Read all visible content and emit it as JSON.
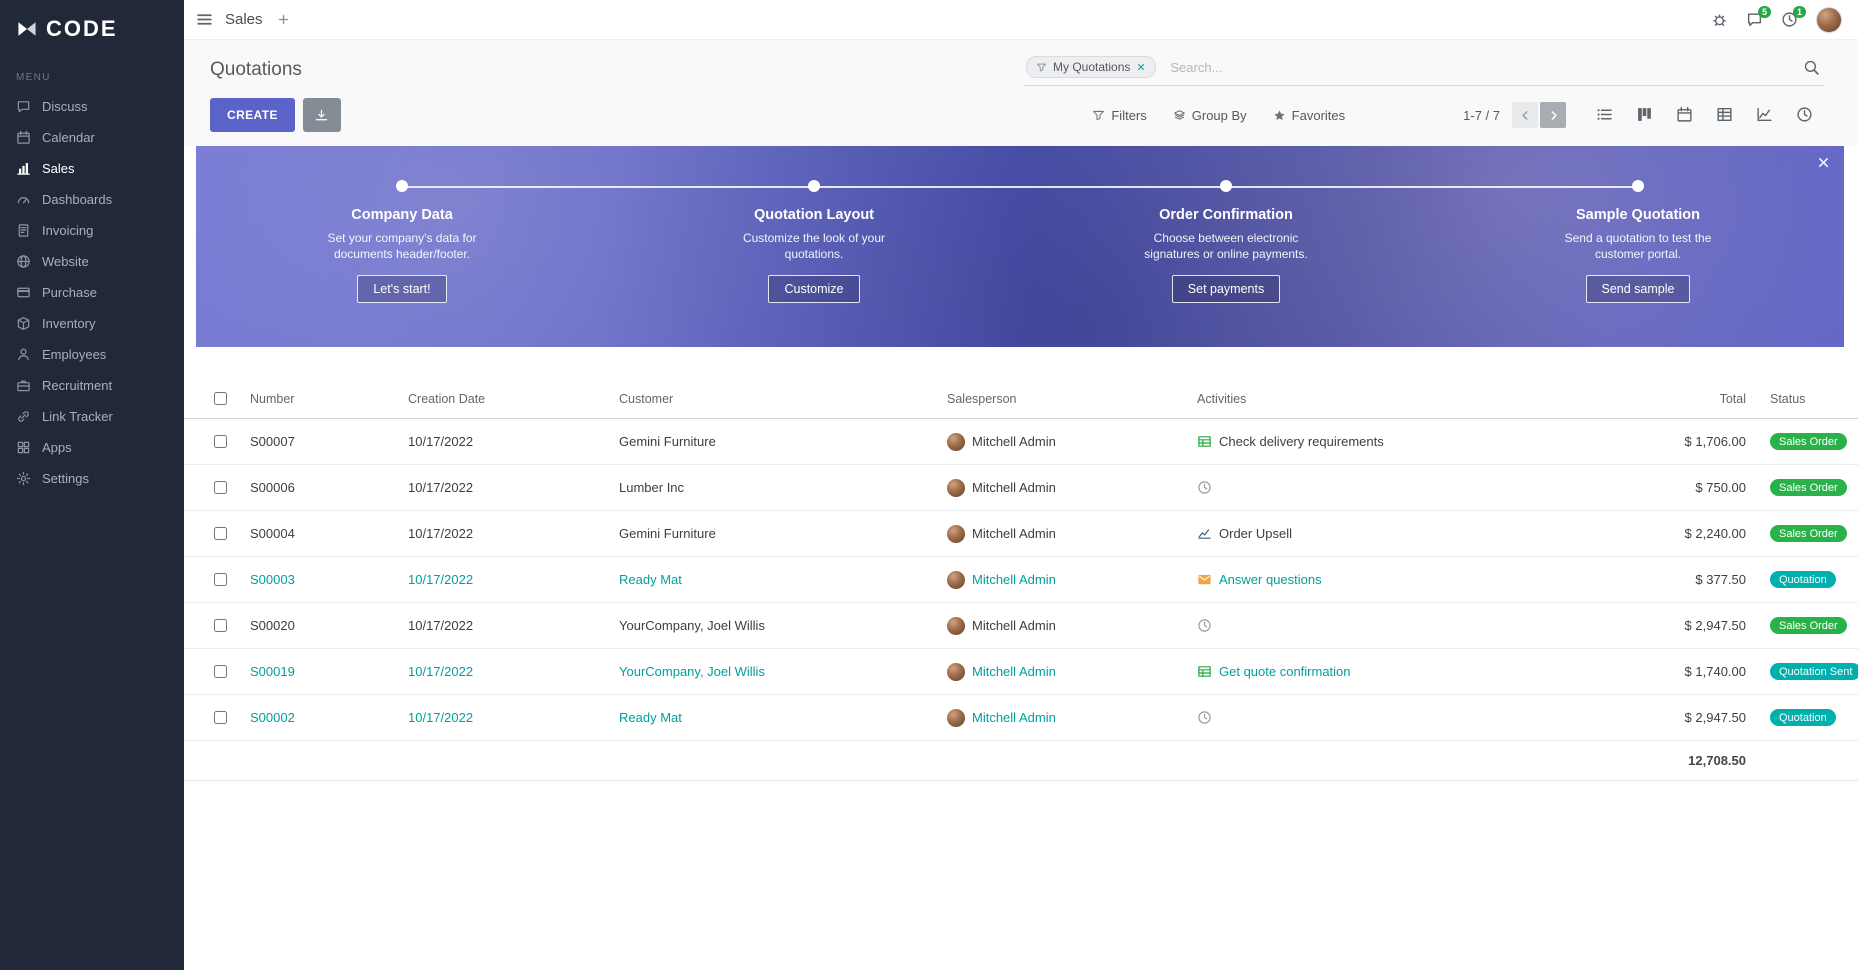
{
  "brand": {
    "name": "CODE"
  },
  "sidebar": {
    "section_label": "MENU",
    "items": [
      {
        "label": "Discuss",
        "icon": "discuss",
        "active": false
      },
      {
        "label": "Calendar",
        "icon": "calendar",
        "active": false
      },
      {
        "label": "Sales",
        "icon": "sales",
        "active": true
      },
      {
        "label": "Dashboards",
        "icon": "dashboards",
        "active": false
      },
      {
        "label": "Invoicing",
        "icon": "invoicing",
        "active": false
      },
      {
        "label": "Website",
        "icon": "website",
        "active": false
      },
      {
        "label": "Purchase",
        "icon": "purchase",
        "active": false
      },
      {
        "label": "Inventory",
        "icon": "inventory",
        "active": false
      },
      {
        "label": "Employees",
        "icon": "employees",
        "active": false
      },
      {
        "label": "Recruitment",
        "icon": "recruitment",
        "active": false
      },
      {
        "label": "Link Tracker",
        "icon": "link",
        "active": false
      },
      {
        "label": "Apps",
        "icon": "apps",
        "active": false
      },
      {
        "label": "Settings",
        "icon": "settings",
        "active": false
      }
    ]
  },
  "topbar": {
    "app_title": "Sales",
    "messages_badge": "5",
    "activities_badge": "1"
  },
  "control_panel": {
    "title": "Quotations",
    "create_button": "CREATE",
    "search": {
      "facet": "My Quotations",
      "placeholder": "Search..."
    },
    "filters": "Filters",
    "group_by": "Group By",
    "favorites": "Favorites",
    "pager": "1-7 / 7"
  },
  "banner": {
    "steps": [
      {
        "title": "Company Data",
        "description": "Set your company's data for documents header/footer.",
        "button": "Let's start!"
      },
      {
        "title": "Quotation Layout",
        "description": "Customize the look of your quotations.",
        "button": "Customize"
      },
      {
        "title": "Order Confirmation",
        "description": "Choose between electronic signatures or online payments.",
        "button": "Set payments"
      },
      {
        "title": "Sample Quotation",
        "description": "Send a quotation to test the customer portal.",
        "button": "Send sample"
      }
    ]
  },
  "table": {
    "headers": {
      "number": "Number",
      "creation_date": "Creation Date",
      "customer": "Customer",
      "salesperson": "Salesperson",
      "activities": "Activities",
      "total": "Total",
      "status": "Status"
    },
    "rows": [
      {
        "number": "S00007",
        "creation_date": "10/17/2022",
        "customer": "Gemini Furniture",
        "salesperson": "Mitchell Admin",
        "activity": "Check delivery requirements",
        "activity_icon": "tasks",
        "total": "$ 1,706.00",
        "status": "Sales Order",
        "status_class": "sales-order",
        "row_class": ""
      },
      {
        "number": "S00006",
        "creation_date": "10/17/2022",
        "customer": "Lumber Inc",
        "salesperson": "Mitchell Admin",
        "activity": "",
        "activity_icon": "clock",
        "total": "$ 750.00",
        "status": "Sales Order",
        "status_class": "sales-order",
        "row_class": ""
      },
      {
        "number": "S00004",
        "creation_date": "10/17/2022",
        "customer": "Gemini Furniture",
        "salesperson": "Mitchell Admin",
        "activity": "Order Upsell",
        "activity_icon": "chart",
        "total": "$ 2,240.00",
        "status": "Sales Order",
        "status_class": "sales-order",
        "row_class": ""
      },
      {
        "number": "S00003",
        "creation_date": "10/17/2022",
        "customer": "Ready Mat",
        "salesperson": "Mitchell Admin",
        "activity": "Answer questions",
        "activity_icon": "envelope",
        "total": "$ 377.50",
        "status": "Quotation",
        "status_class": "quotation",
        "row_class": "teal"
      },
      {
        "number": "S00020",
        "creation_date": "10/17/2022",
        "customer": "YourCompany, Joel Willis",
        "salesperson": "Mitchell Admin",
        "activity": "",
        "activity_icon": "clock",
        "total": "$ 2,947.50",
        "status": "Sales Order",
        "status_class": "sales-order",
        "row_class": ""
      },
      {
        "number": "S00019",
        "creation_date": "10/17/2022",
        "customer": "YourCompany, Joel Willis",
        "salesperson": "Mitchell Admin",
        "activity": "Get quote confirmation",
        "activity_icon": "tasks",
        "total": "$ 1,740.00",
        "status": "Quotation Sent",
        "status_class": "quotation",
        "row_class": "teal"
      },
      {
        "number": "S00002",
        "creation_date": "10/17/2022",
        "customer": "Ready Mat",
        "salesperson": "Mitchell Admin",
        "activity": "",
        "activity_icon": "clock",
        "total": "$ 2,947.50",
        "status": "Quotation",
        "status_class": "quotation",
        "row_class": "teal"
      }
    ],
    "footer_total": "12,708.50"
  },
  "colors": {
    "sidebar_bg": "#212838",
    "primary_button": "#5b63c8",
    "accent_teal": "#00a09d",
    "badge_green": "#2ab24a",
    "badge_teal": "#00b0ad",
    "banner_purple": "#565dc2"
  }
}
